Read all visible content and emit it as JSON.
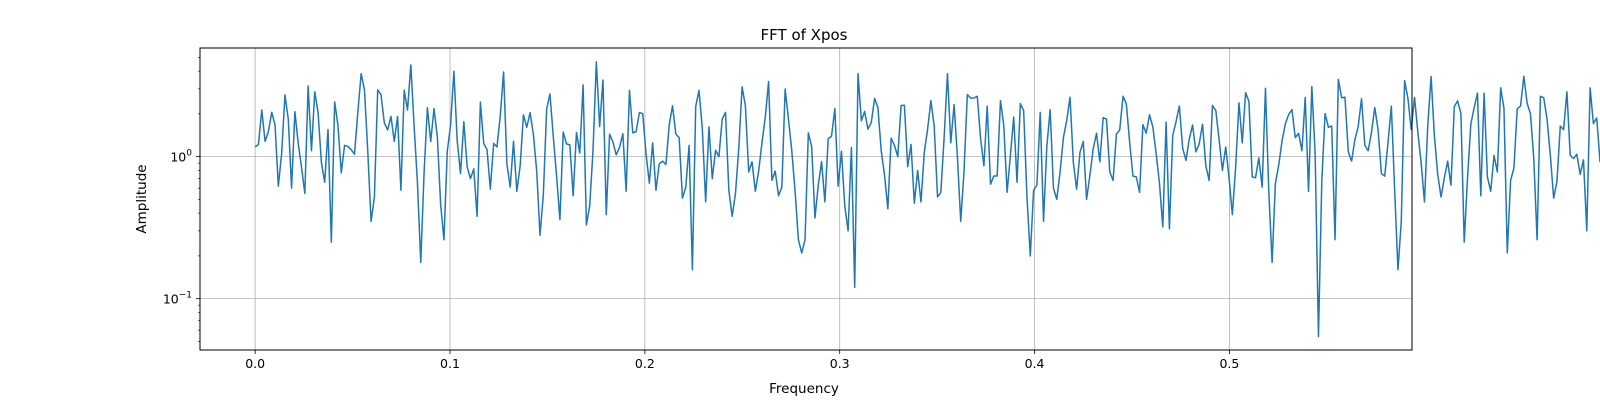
{
  "chart_data": {
    "type": "line",
    "title": "FFT of Xpos",
    "xlabel": "Frequency",
    "ylabel": "Amplitude",
    "xlim": [
      -0.0283,
      0.5937
    ],
    "ylim": [
      0.0435,
      5.82
    ],
    "yscale": "log",
    "grid": true,
    "xticks": [
      0.0,
      0.1,
      0.2,
      0.3,
      0.4,
      0.5
    ],
    "xtick_labels": [
      "0.0",
      "0.1",
      "0.2",
      "0.3",
      "0.4",
      "0.5"
    ],
    "yticks": [
      0.1,
      1.0
    ],
    "ytick_base": "10",
    "ytick_exponents": [
      "−1",
      "0"
    ],
    "series": [
      {
        "color": "#1f77b4",
        "x_start": 0.0,
        "x_step": 0.0017,
        "values": [
          1.17,
          1.22,
          2.13,
          1.28,
          1.5,
          2.05,
          1.68,
          0.62,
          1.05,
          2.72,
          1.84,
          0.6,
          2.07,
          1.24,
          0.84,
          0.55,
          3.14,
          1.1,
          2.86,
          2.04,
          0.91,
          0.66,
          1.55,
          0.25,
          2.43,
          1.66,
          0.77,
          1.2,
          1.18,
          1.12,
          1.04,
          2.05,
          3.84,
          2.96,
          1.09,
          0.35,
          0.52,
          2.95,
          2.73,
          1.73,
          1.54,
          1.92,
          1.28,
          1.92,
          0.58,
          2.94,
          2.13,
          4.42,
          1.63,
          0.65,
          0.18,
          0.77,
          2.21,
          1.28,
          2.18,
          1.38,
          0.46,
          0.26,
          1.09,
          1.67,
          4.0,
          1.29,
          0.76,
          1.76,
          0.85,
          0.7,
          0.82,
          0.38,
          2.42,
          1.24,
          1.12,
          0.59,
          1.24,
          1.17,
          1.94,
          3.94,
          0.89,
          0.61,
          1.28,
          0.57,
          0.86,
          1.97,
          1.61,
          2.04,
          1.43,
          0.79,
          0.28,
          0.54,
          2.16,
          2.76,
          1.39,
          0.73,
          0.36,
          1.49,
          1.23,
          1.21,
          0.53,
          1.48,
          1.06,
          3.2,
          0.33,
          0.45,
          1.11,
          4.65,
          1.63,
          3.46,
          0.39,
          1.44,
          1.27,
          1.03,
          1.16,
          1.45,
          0.57,
          2.92,
          1.47,
          1.5,
          2.04,
          2.01,
          1.05,
          0.65,
          1.25,
          0.58,
          0.89,
          0.93,
          0.88,
          1.67,
          2.28,
          1.44,
          1.36,
          0.51,
          0.61,
          1.2,
          0.16,
          2.26,
          2.93,
          1.56,
          0.48,
          1.62,
          0.7,
          1.11,
          1.0,
          1.84,
          2.05,
          0.58,
          0.38,
          0.55,
          1.14,
          3.1,
          2.28,
          0.78,
          0.92,
          0.57,
          0.79,
          1.25,
          1.9,
          3.38,
          0.68,
          0.79,
          0.53,
          0.61,
          2.99,
          1.84,
          1.1,
          0.57,
          0.26,
          0.21,
          0.26,
          1.47,
          1.18,
          0.37,
          0.63,
          0.92,
          0.48,
          1.34,
          1.39,
          2.18,
          0.62,
          1.09,
          0.45,
          0.3,
          1.16,
          0.12,
          3.84,
          1.79,
          2.08,
          1.56,
          1.74,
          2.57,
          2.22,
          1.1,
          0.74,
          0.43,
          1.35,
          1.2,
          1.0,
          2.29,
          2.3,
          0.85,
          1.22,
          0.47,
          0.8,
          0.48,
          1.07,
          1.56,
          2.48,
          1.64,
          0.52,
          0.56,
          1.37,
          3.84,
          1.25,
          2.33,
          1.0,
          0.35,
          0.79,
          2.74,
          2.58,
          2.59,
          2.66,
          1.34,
          0.86,
          2.27,
          0.64,
          0.73,
          0.73,
          2.48,
          1.66,
          0.56,
          1.02,
          1.9,
          0.66,
          2.36,
          2.11,
          0.52,
          0.2,
          0.58,
          0.63,
          2.05,
          0.35,
          1.18,
          2.14,
          0.6,
          0.5,
          0.78,
          1.36,
          1.8,
          2.62,
          0.91,
          0.59,
          1.07,
          1.28,
          0.5,
          0.74,
          1.14,
          1.46,
          0.92,
          1.88,
          1.84,
          0.78,
          0.68,
          1.44,
          1.54,
          2.66,
          2.36,
          1.26,
          0.73,
          0.72,
          0.56,
          1.68,
          1.46,
          1.97,
          1.62,
          1.05,
          0.65,
          0.32,
          1.75,
          0.31,
          1.41,
          1.76,
          2.27,
          1.15,
          0.94,
          1.33,
          1.67,
          1.08,
          1.23,
          1.69,
          0.86,
          0.68,
          2.29,
          2.12,
          1.32,
          0.8,
          1.17,
          0.71,
          0.39,
          0.85,
          2.39,
          1.25,
          2.82,
          2.45,
          0.72,
          0.71,
          0.98,
          0.61,
          3.03,
          0.57,
          0.18,
          0.65,
          0.87,
          1.29,
          1.7,
          1.98,
          2.14,
          1.36,
          1.46,
          1.1,
          2.61,
          0.57,
          3.11,
          1.04,
          0.054,
          0.67,
          2.01,
          1.61,
          1.64,
          0.26,
          3.49,
          2.6,
          2.62,
          1.08,
          0.93,
          1.32,
          1.63,
          2.56,
          1.2,
          1.1,
          1.48,
          2.22,
          1.54,
          0.76,
          0.73,
          1.26,
          2.27,
          0.58,
          0.16,
          0.35,
          3.43,
          2.58,
          1.55,
          2.61,
          1.49,
          0.9,
          0.48,
          1.67,
          3.67,
          1.39,
          0.75,
          0.52,
          0.71,
          0.93,
          0.63,
          2.25,
          2.47,
          2.02,
          0.25,
          0.71,
          1.7,
          2.21,
          2.8,
          0.53,
          2.8,
          0.72,
          0.57,
          1.02,
          0.78,
          3.05,
          2.19,
          0.21,
          0.68,
          0.83,
          2.17,
          2.27,
          3.68,
          2.37,
          2.0,
          0.97,
          0.26,
          2.66,
          2.6,
          1.84,
          1.02,
          0.51,
          0.67,
          1.64,
          1.55,
          2.86,
          1.02,
          0.97,
          1.04,
          0.75,
          0.95,
          0.3,
          3.05,
          1.71,
          1.87,
          0.92,
          1.02,
          0.14
        ]
      }
    ]
  }
}
